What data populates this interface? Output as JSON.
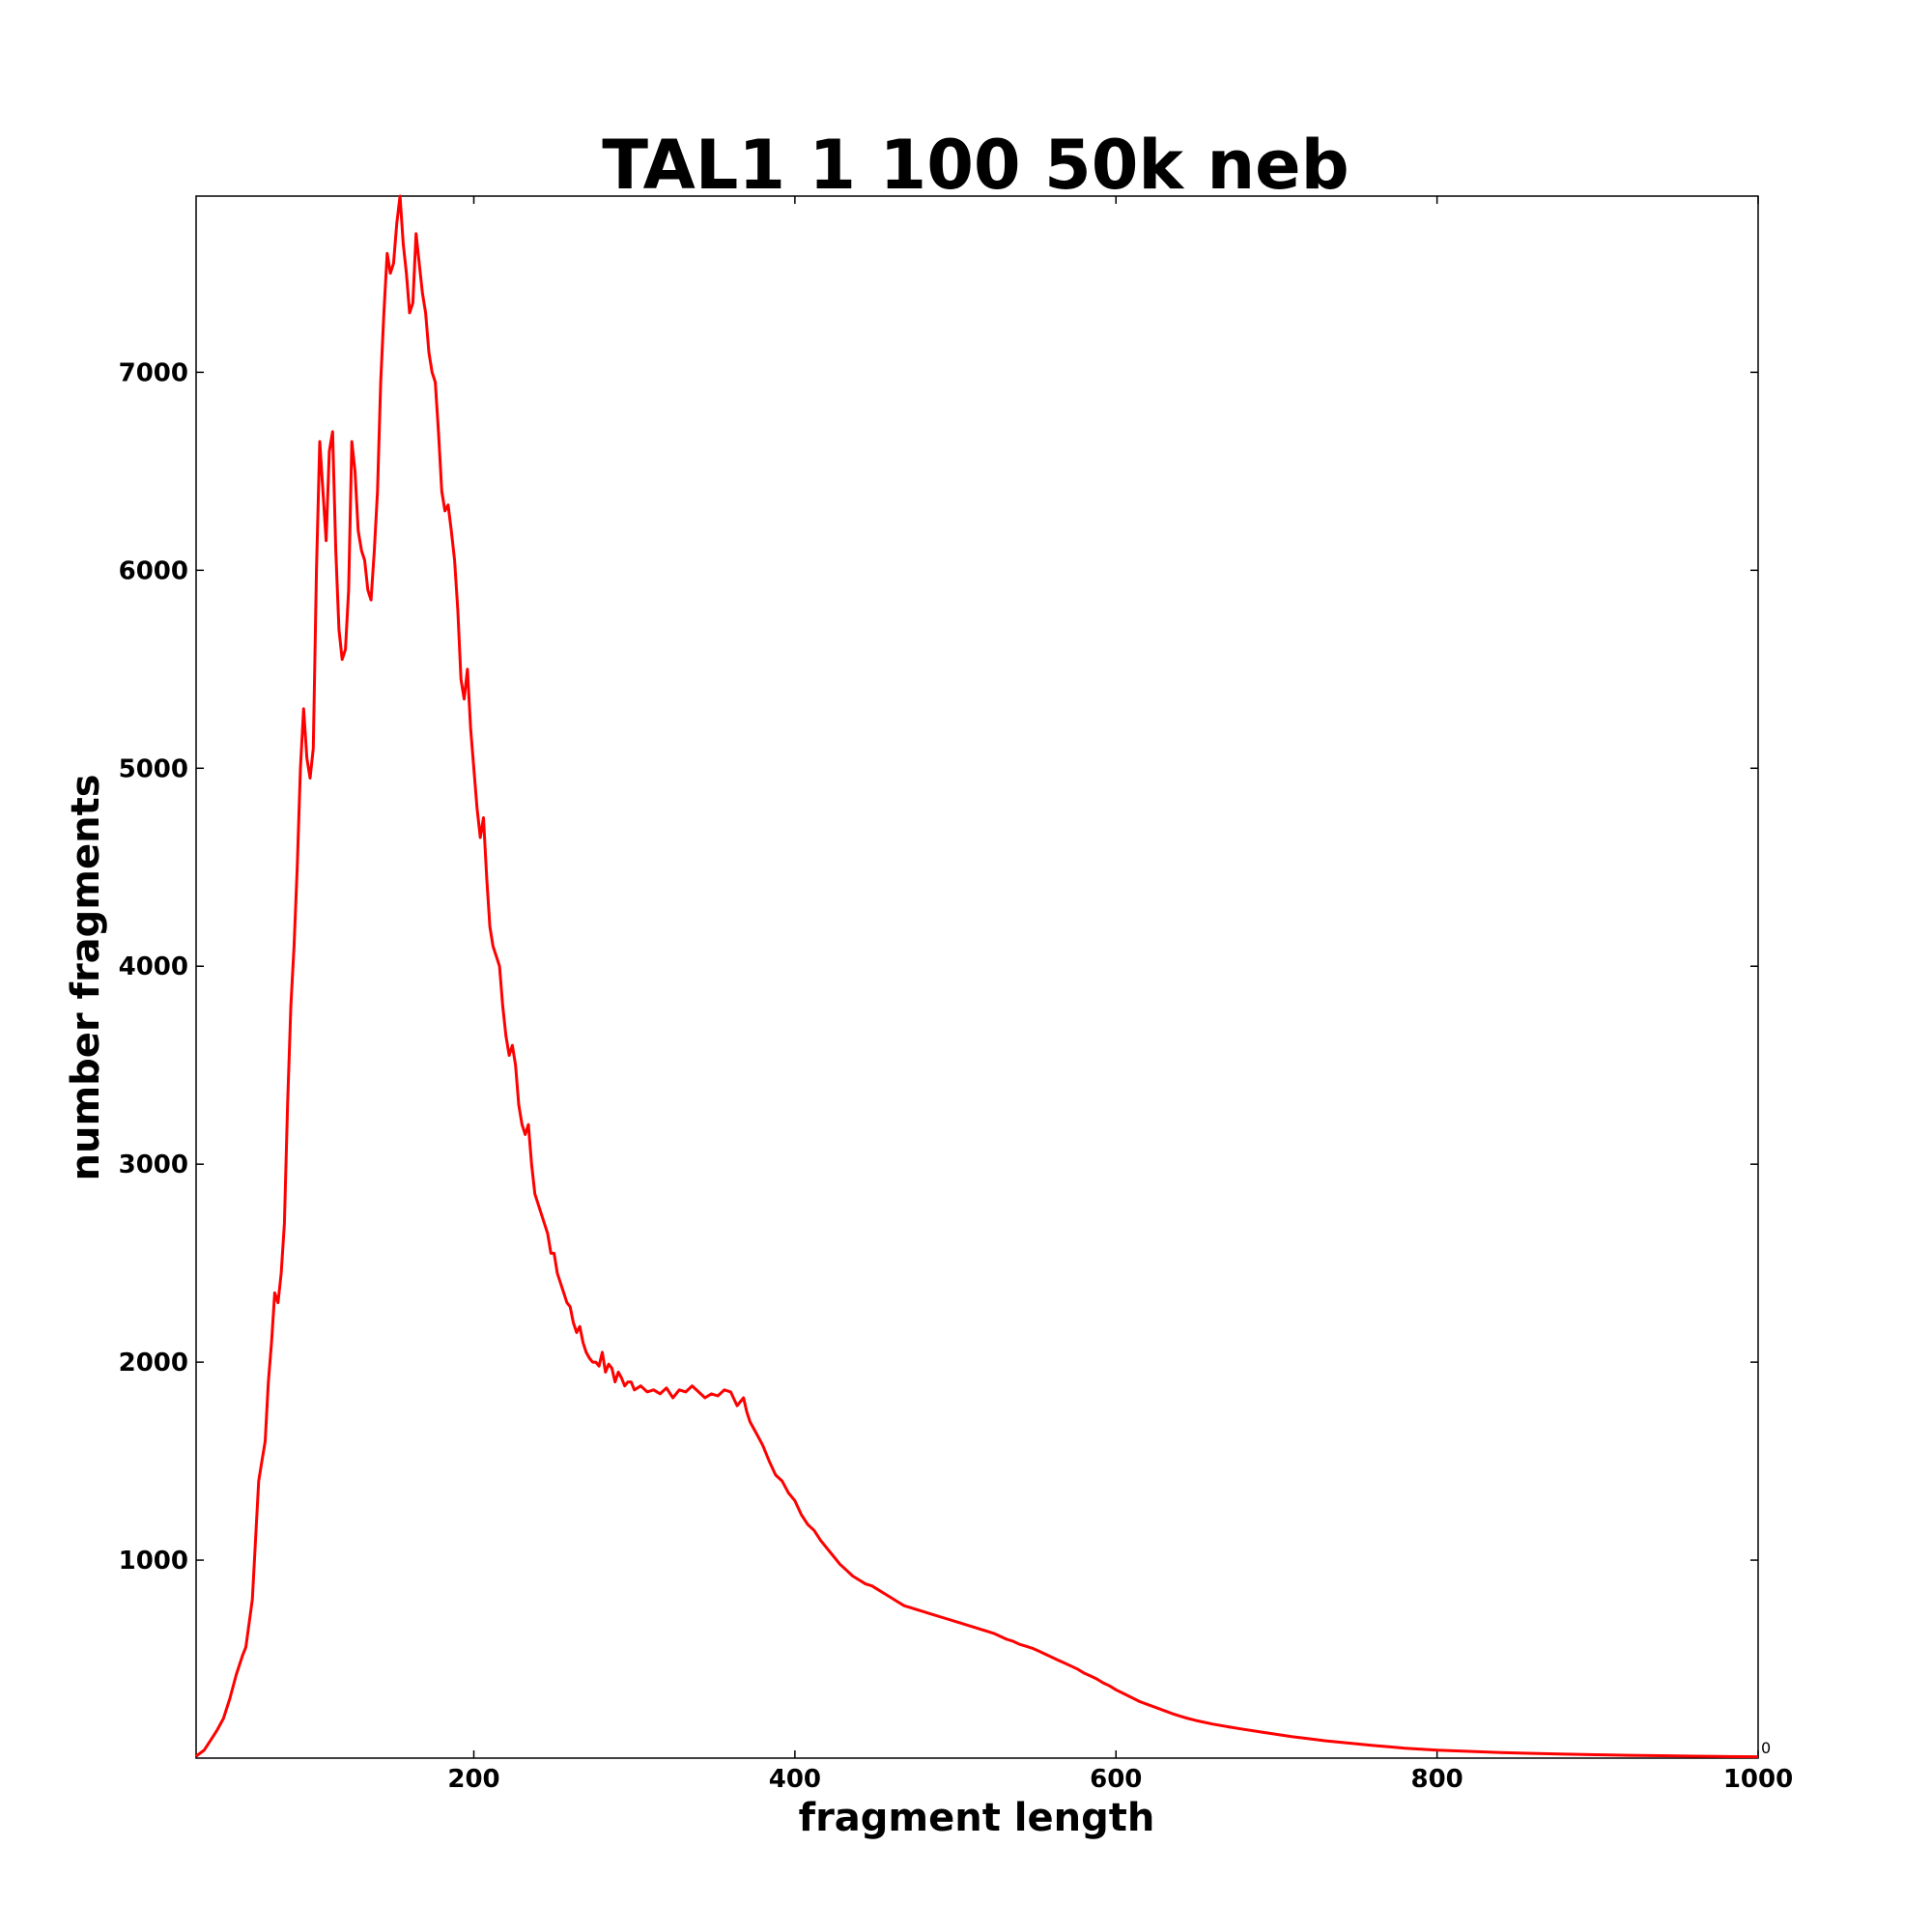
{
  "chart_data": {
    "type": "line",
    "title": "TAL1 1 100 50k neb",
    "xlabel": "fragment length",
    "ylabel": "number fragments",
    "xlim": [
      27,
      1000
    ],
    "ylim": [
      0,
      7890
    ],
    "xticks": [
      200,
      400,
      600,
      800,
      1000
    ],
    "yticks": [
      1000,
      2000,
      3000,
      4000,
      5000,
      6000,
      7000
    ],
    "corner_label": "0",
    "grid": false,
    "legend": "none",
    "series": [
      {
        "color": "#ff0000",
        "points": [
          [
            27,
            10
          ],
          [
            32,
            40
          ],
          [
            36,
            90
          ],
          [
            40,
            140
          ],
          [
            44,
            200
          ],
          [
            48,
            300
          ],
          [
            52,
            420
          ],
          [
            56,
            520
          ],
          [
            58,
            560
          ],
          [
            62,
            800
          ],
          [
            64,
            1100
          ],
          [
            66,
            1400
          ],
          [
            68,
            1500
          ],
          [
            70,
            1600
          ],
          [
            72,
            1900
          ],
          [
            74,
            2100
          ],
          [
            76,
            2350
          ],
          [
            78,
            2300
          ],
          [
            80,
            2450
          ],
          [
            82,
            2700
          ],
          [
            84,
            3300
          ],
          [
            86,
            3800
          ],
          [
            88,
            4100
          ],
          [
            90,
            4500
          ],
          [
            92,
            5000
          ],
          [
            94,
            5300
          ],
          [
            96,
            5050
          ],
          [
            98,
            4950
          ],
          [
            100,
            5100
          ],
          [
            102,
            6000
          ],
          [
            104,
            6650
          ],
          [
            106,
            6400
          ],
          [
            108,
            6150
          ],
          [
            110,
            6600
          ],
          [
            112,
            6700
          ],
          [
            114,
            6100
          ],
          [
            116,
            5700
          ],
          [
            118,
            5550
          ],
          [
            120,
            5600
          ],
          [
            122,
            5900
          ],
          [
            124,
            6650
          ],
          [
            126,
            6500
          ],
          [
            128,
            6200
          ],
          [
            130,
            6100
          ],
          [
            132,
            6050
          ],
          [
            134,
            5900
          ],
          [
            136,
            5850
          ],
          [
            138,
            6100
          ],
          [
            140,
            6400
          ],
          [
            142,
            6950
          ],
          [
            144,
            7300
          ],
          [
            146,
            7600
          ],
          [
            148,
            7500
          ],
          [
            150,
            7550
          ],
          [
            152,
            7750
          ],
          [
            154,
            7890
          ],
          [
            156,
            7650
          ],
          [
            158,
            7500
          ],
          [
            160,
            7300
          ],
          [
            162,
            7350
          ],
          [
            164,
            7700
          ],
          [
            166,
            7550
          ],
          [
            168,
            7400
          ],
          [
            170,
            7300
          ],
          [
            172,
            7100
          ],
          [
            174,
            7000
          ],
          [
            176,
            6950
          ],
          [
            178,
            6700
          ],
          [
            180,
            6400
          ],
          [
            182,
            6300
          ],
          [
            184,
            6330
          ],
          [
            186,
            6200
          ],
          [
            188,
            6050
          ],
          [
            190,
            5800
          ],
          [
            192,
            5450
          ],
          [
            194,
            5350
          ],
          [
            196,
            5500
          ],
          [
            198,
            5200
          ],
          [
            200,
            5000
          ],
          [
            202,
            4800
          ],
          [
            204,
            4650
          ],
          [
            206,
            4750
          ],
          [
            208,
            4450
          ],
          [
            210,
            4200
          ],
          [
            212,
            4100
          ],
          [
            214,
            4050
          ],
          [
            216,
            4000
          ],
          [
            218,
            3800
          ],
          [
            220,
            3650
          ],
          [
            222,
            3550
          ],
          [
            224,
            3600
          ],
          [
            226,
            3500
          ],
          [
            228,
            3300
          ],
          [
            230,
            3200
          ],
          [
            232,
            3150
          ],
          [
            234,
            3200
          ],
          [
            236,
            3000
          ],
          [
            238,
            2850
          ],
          [
            240,
            2800
          ],
          [
            242,
            2750
          ],
          [
            244,
            2700
          ],
          [
            246,
            2650
          ],
          [
            248,
            2550
          ],
          [
            250,
            2550
          ],
          [
            252,
            2450
          ],
          [
            254,
            2400
          ],
          [
            256,
            2350
          ],
          [
            258,
            2300
          ],
          [
            260,
            2280
          ],
          [
            262,
            2200
          ],
          [
            264,
            2150
          ],
          [
            266,
            2180
          ],
          [
            268,
            2100
          ],
          [
            270,
            2050
          ],
          [
            272,
            2020
          ],
          [
            274,
            2000
          ],
          [
            276,
            2000
          ],
          [
            278,
            1980
          ],
          [
            280,
            2050
          ],
          [
            282,
            1950
          ],
          [
            284,
            1990
          ],
          [
            286,
            1970
          ],
          [
            288,
            1900
          ],
          [
            290,
            1950
          ],
          [
            292,
            1920
          ],
          [
            294,
            1880
          ],
          [
            296,
            1900
          ],
          [
            298,
            1900
          ],
          [
            300,
            1860
          ],
          [
            304,
            1880
          ],
          [
            308,
            1850
          ],
          [
            312,
            1860
          ],
          [
            316,
            1840
          ],
          [
            320,
            1870
          ],
          [
            324,
            1820
          ],
          [
            328,
            1860
          ],
          [
            332,
            1850
          ],
          [
            336,
            1880
          ],
          [
            340,
            1850
          ],
          [
            344,
            1820
          ],
          [
            348,
            1840
          ],
          [
            352,
            1830
          ],
          [
            356,
            1860
          ],
          [
            360,
            1850
          ],
          [
            364,
            1780
          ],
          [
            368,
            1820
          ],
          [
            370,
            1750
          ],
          [
            372,
            1700
          ],
          [
            376,
            1640
          ],
          [
            380,
            1580
          ],
          [
            384,
            1500
          ],
          [
            388,
            1430
          ],
          [
            392,
            1400
          ],
          [
            396,
            1340
          ],
          [
            400,
            1300
          ],
          [
            404,
            1230
          ],
          [
            408,
            1180
          ],
          [
            412,
            1150
          ],
          [
            416,
            1100
          ],
          [
            420,
            1060
          ],
          [
            424,
            1020
          ],
          [
            428,
            980
          ],
          [
            432,
            950
          ],
          [
            436,
            920
          ],
          [
            440,
            900
          ],
          [
            444,
            880
          ],
          [
            448,
            870
          ],
          [
            452,
            850
          ],
          [
            456,
            830
          ],
          [
            460,
            810
          ],
          [
            464,
            790
          ],
          [
            468,
            770
          ],
          [
            472,
            760
          ],
          [
            476,
            750
          ],
          [
            480,
            740
          ],
          [
            484,
            730
          ],
          [
            488,
            720
          ],
          [
            492,
            710
          ],
          [
            496,
            700
          ],
          [
            500,
            690
          ],
          [
            504,
            680
          ],
          [
            508,
            670
          ],
          [
            512,
            660
          ],
          [
            516,
            650
          ],
          [
            520,
            640
          ],
          [
            524,
            630
          ],
          [
            528,
            615
          ],
          [
            532,
            600
          ],
          [
            536,
            590
          ],
          [
            540,
            575
          ],
          [
            544,
            565
          ],
          [
            548,
            555
          ],
          [
            552,
            540
          ],
          [
            556,
            525
          ],
          [
            560,
            510
          ],
          [
            564,
            495
          ],
          [
            568,
            480
          ],
          [
            572,
            465
          ],
          [
            576,
            450
          ],
          [
            580,
            430
          ],
          [
            584,
            415
          ],
          [
            588,
            400
          ],
          [
            592,
            380
          ],
          [
            596,
            365
          ],
          [
            600,
            345
          ],
          [
            605,
            325
          ],
          [
            610,
            305
          ],
          [
            615,
            285
          ],
          [
            620,
            270
          ],
          [
            625,
            255
          ],
          [
            630,
            240
          ],
          [
            635,
            225
          ],
          [
            640,
            212
          ],
          [
            645,
            200
          ],
          [
            650,
            190
          ],
          [
            660,
            172
          ],
          [
            670,
            158
          ],
          [
            680,
            145
          ],
          [
            690,
            132
          ],
          [
            700,
            120
          ],
          [
            710,
            108
          ],
          [
            720,
            98
          ],
          [
            730,
            88
          ],
          [
            740,
            80
          ],
          [
            750,
            72
          ],
          [
            760,
            64
          ],
          [
            770,
            57
          ],
          [
            780,
            50
          ],
          [
            790,
            45
          ],
          [
            800,
            40
          ],
          [
            820,
            34
          ],
          [
            840,
            28
          ],
          [
            860,
            24
          ],
          [
            880,
            20
          ],
          [
            900,
            17
          ],
          [
            920,
            14
          ],
          [
            940,
            12
          ],
          [
            960,
            10
          ],
          [
            980,
            8
          ],
          [
            1000,
            7
          ]
        ]
      }
    ]
  }
}
